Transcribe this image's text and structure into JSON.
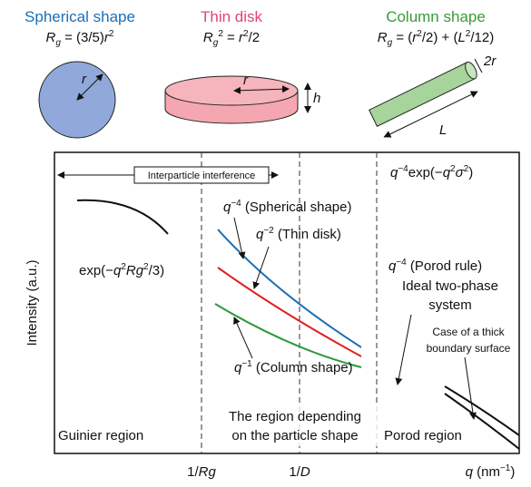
{
  "shapes": [
    {
      "name": "Spherical shape",
      "formula": [
        "R",
        "g",
        " = (3/5)",
        "r",
        "2"
      ],
      "labels": [
        "r"
      ]
    },
    {
      "name": "Thin disk",
      "formula": [
        "R",
        "g",
        "2",
        " = ",
        "r",
        "2",
        "/2"
      ],
      "labels": [
        "r",
        "h"
      ]
    },
    {
      "name": "Column shape",
      "formula": [
        "R",
        "g",
        " = (",
        "r",
        "2",
        "/2) + (",
        "L",
        "2",
        "/12)"
      ],
      "labels": [
        "2r",
        "L"
      ]
    }
  ],
  "plot": {
    "y_axis_label": "Intensity (a.u.)",
    "x_axis_label": [
      "q",
      " (nm",
      "−1",
      ")"
    ],
    "x_ticks": [
      [
        "1/",
        "Rg"
      ],
      [
        "1/",
        "D"
      ]
    ],
    "interparticle": "Interparticle interference",
    "guinier_formula": [
      "exp(−",
      "q",
      "2",
      "Rg",
      "2",
      "/3)"
    ],
    "porod_formula": [
      "q",
      "−4",
      "exp(−",
      "q",
      "2",
      "σ",
      "2",
      ")"
    ],
    "curve_labels": [
      [
        "q",
        "−4",
        " (Spherical shape)"
      ],
      [
        "q",
        "−2",
        " (Thin disk)"
      ],
      [
        "q",
        "−1",
        " (Column shape)"
      ]
    ],
    "porod_rule": [
      "q",
      "−4",
      " (Porod rule)"
    ],
    "ideal": [
      "Ideal two-phase",
      "system"
    ],
    "thick": [
      "Case of a thick",
      "boundary surface"
    ],
    "regions": [
      "Guinier region",
      [
        "The region depending",
        "on the particle shape"
      ],
      "Porod region"
    ]
  }
}
